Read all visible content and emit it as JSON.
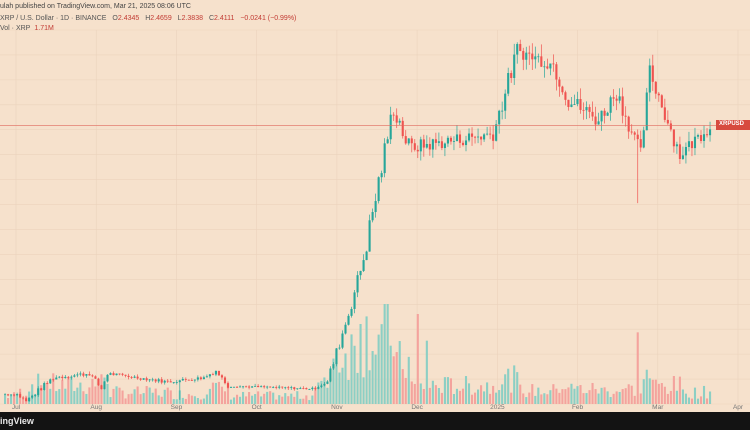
{
  "header": {
    "published": "ulah published on TradingView.com, Mar 21, 2025 08:06 UTC",
    "symbol": "XRP / U.S. Dollar · 1D · BINANCE",
    "o_label": "O",
    "o_val": "2.4345",
    "h_label": "H",
    "h_val": "2.4659",
    "l_label": "L",
    "l_val": "2.3838",
    "c_label": "C",
    "c_val": "2.4111",
    "change": "−0.0241 (−0.99%)",
    "vol_label": "Vol · XRP",
    "vol_val": "1.71M"
  },
  "price_tag": "XRPUSD",
  "footer": {
    "brand": "ingView"
  },
  "colors": {
    "up": "#26a69a",
    "down": "#ef5350",
    "up_vol": "#8ccfc4",
    "down_vol": "#f4a39d",
    "bg": "#f6e1cc",
    "grid": "#ebd3bd",
    "priceline": "#e06a5e",
    "axis_text": "#777777"
  },
  "chart_data": {
    "type": "candlestick",
    "xlabel": "",
    "ylabel": "",
    "x_ticks": [
      "Jul",
      "Aug",
      "Sep",
      "Oct",
      "Nov",
      "Dec",
      "2025",
      "Feb",
      "Mar",
      "Apr"
    ],
    "ylim": [
      0.4,
      3.1
    ],
    "ylim_volume": [
      0,
      600
    ],
    "grid": true,
    "last_close": 2.4111,
    "segments": [
      {
        "days": 5,
        "start": 0.47,
        "end": 0.47,
        "noise": 0.01,
        "vol": 50
      },
      {
        "days": 3,
        "start": 0.47,
        "end": 0.42,
        "noise": 0.015,
        "vol": 70
      },
      {
        "days": 9,
        "start": 0.42,
        "end": 0.59,
        "noise": 0.02,
        "vol": 120
      },
      {
        "days": 12,
        "start": 0.59,
        "end": 0.62,
        "noise": 0.015,
        "vol": 110
      },
      {
        "days": 4,
        "start": 0.62,
        "end": 0.51,
        "noise": 0.02,
        "vol": 130
      },
      {
        "days": 2,
        "start": 0.51,
        "end": 0.62,
        "noise": 0.02,
        "vol": 170
      },
      {
        "days": 20,
        "start": 0.62,
        "end": 0.56,
        "noise": 0.012,
        "vol": 70
      },
      {
        "days": 12,
        "start": 0.56,
        "end": 0.59,
        "noise": 0.012,
        "vol": 60
      },
      {
        "days": 4,
        "start": 0.59,
        "end": 0.64,
        "noise": 0.015,
        "vol": 100
      },
      {
        "days": 4,
        "start": 0.64,
        "end": 0.53,
        "noise": 0.015,
        "vol": 90
      },
      {
        "days": 28,
        "start": 0.53,
        "end": 0.51,
        "noise": 0.008,
        "vol": 50
      },
      {
        "days": 5,
        "start": 0.51,
        "end": 0.56,
        "noise": 0.012,
        "vol": 110
      },
      {
        "days": 7,
        "start": 0.56,
        "end": 1.05,
        "noise": 0.04,
        "vol": 300
      },
      {
        "days": 5,
        "start": 1.05,
        "end": 1.45,
        "noise": 0.05,
        "vol": 330
      },
      {
        "days": 10,
        "start": 1.45,
        "end": 2.55,
        "noise": 0.08,
        "vol": 420
      },
      {
        "days": 5,
        "start": 2.55,
        "end": 2.25,
        "noise": 0.08,
        "vol": 250
      },
      {
        "days": 28,
        "start": 2.25,
        "end": 2.35,
        "noise": 0.05,
        "vol": 110
      },
      {
        "days": 8,
        "start": 2.35,
        "end": 2.95,
        "noise": 0.07,
        "vol": 150
      },
      {
        "days": 12,
        "start": 2.95,
        "end": 2.85,
        "noise": 0.05,
        "vol": 80
      },
      {
        "days": 5,
        "start": 2.85,
        "end": 2.6,
        "noise": 0.07,
        "vol": 110
      },
      {
        "days": 10,
        "start": 2.6,
        "end": 2.45,
        "noise": 0.06,
        "vol": 90
      },
      {
        "days": 6,
        "start": 2.45,
        "end": 2.65,
        "noise": 0.06,
        "vol": 80
      },
      {
        "days": 8,
        "start": 2.65,
        "end": 2.2,
        "noise": 0.06,
        "vol": 90
      },
      {
        "days": 3,
        "start": 2.2,
        "end": 2.8,
        "noise": 0.06,
        "vol": 170
      },
      {
        "days": 10,
        "start": 2.8,
        "end": 2.2,
        "noise": 0.06,
        "vol": 110
      },
      {
        "days": 10,
        "start": 2.2,
        "end": 2.41,
        "noise": 0.05,
        "vol": 70
      }
    ],
    "wicks": [
      {
        "day": 58,
        "low": 0.43
      },
      {
        "day": 210,
        "low": 1.85
      },
      {
        "day": 258,
        "low": 1.95
      },
      {
        "day": 247,
        "high": 2.95
      }
    ],
    "volume_spikes": [
      {
        "day": 118,
        "vol": 480
      },
      {
        "day": 128,
        "vol": 350
      },
      {
        "day": 137,
        "vol": 540
      },
      {
        "day": 140,
        "vol": 380
      },
      {
        "day": 210,
        "vol": 430
      },
      {
        "day": 245,
        "vol": 240
      }
    ]
  }
}
